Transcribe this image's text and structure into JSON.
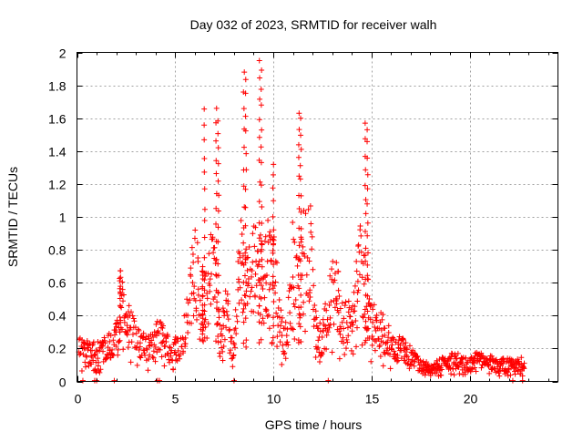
{
  "chart_data": {
    "type": "scatter",
    "title": "Day 032 of 2023, SRMTID for receiver walh",
    "xlabel": "GPS time / hours",
    "ylabel": "SRMTID / TECUs",
    "xlim": [
      0,
      24.5
    ],
    "ylim": [
      0,
      2
    ],
    "x_ticks": [
      0,
      5,
      10,
      15,
      20
    ],
    "x_tick_labels": [
      "0",
      "5",
      "10",
      "15",
      "20"
    ],
    "y_ticks": [
      0,
      0.2,
      0.4,
      0.6,
      0.8,
      1,
      1.2,
      1.4,
      1.6,
      1.8,
      2
    ],
    "y_tick_labels": [
      "0",
      "0.2",
      "0.4",
      "0.6",
      "0.8",
      "1",
      "1.2",
      "1.4",
      "1.6",
      "1.8",
      "2"
    ],
    "grid": true,
    "marker": "+",
    "series": [
      {
        "name": "SRMTID",
        "color": "#ff0000",
        "envelope": [
          [
            0.1,
            0.19
          ],
          [
            0.9,
            0.17
          ],
          [
            1.2,
            0.18
          ],
          [
            1.5,
            0.2
          ],
          [
            1.8,
            0.23
          ],
          [
            2.1,
            0.28
          ],
          [
            2.25,
            0.65
          ],
          [
            2.4,
            0.35
          ],
          [
            2.7,
            0.33
          ],
          [
            3.0,
            0.3
          ],
          [
            3.3,
            0.22
          ],
          [
            3.7,
            0.2
          ],
          [
            4.2,
            0.28
          ],
          [
            4.5,
            0.22
          ],
          [
            4.8,
            0.2
          ],
          [
            5.1,
            0.2
          ],
          [
            5.4,
            0.25
          ],
          [
            5.7,
            0.45
          ],
          [
            6.0,
            0.7
          ],
          [
            6.3,
            0.5
          ],
          [
            6.6,
            0.5
          ],
          [
            6.9,
            0.75
          ],
          [
            7.1,
            0.6
          ],
          [
            7.3,
            0.2
          ],
          [
            7.6,
            0.45
          ],
          [
            8.0,
            0.2
          ],
          [
            8.3,
            0.8
          ],
          [
            8.55,
            0.6
          ],
          [
            8.8,
            0.65
          ],
          [
            9.1,
            0.7
          ],
          [
            9.5,
            0.6
          ],
          [
            9.8,
            0.75
          ],
          [
            10.1,
            0.6
          ],
          [
            10.4,
            0.3
          ],
          [
            10.7,
            0.25
          ],
          [
            11.0,
            0.8
          ],
          [
            11.3,
            0.6
          ],
          [
            11.6,
            0.85
          ],
          [
            11.9,
            0.8
          ],
          [
            12.2,
            0.3
          ],
          [
            12.5,
            0.25
          ],
          [
            12.9,
            0.5
          ],
          [
            13.2,
            0.55
          ],
          [
            13.5,
            0.35
          ],
          [
            13.8,
            0.35
          ],
          [
            14.1,
            0.45
          ],
          [
            14.4,
            0.75
          ],
          [
            14.7,
            0.55
          ],
          [
            15.0,
            0.35
          ],
          [
            15.4,
            0.35
          ],
          [
            15.8,
            0.25
          ],
          [
            16.2,
            0.22
          ],
          [
            16.6,
            0.2
          ],
          [
            17.0,
            0.15
          ],
          [
            17.5,
            0.1
          ],
          [
            18.0,
            0.08
          ],
          [
            18.5,
            0.1
          ],
          [
            19.0,
            0.12
          ],
          [
            19.5,
            0.13
          ],
          [
            20.0,
            0.1
          ],
          [
            20.5,
            0.14
          ],
          [
            21.0,
            0.12
          ],
          [
            21.5,
            0.1
          ],
          [
            22.0,
            0.1
          ],
          [
            22.5,
            0.1
          ],
          [
            22.8,
            0.11
          ]
        ],
        "spikes": [
          [
            2.2,
            0.69
          ],
          [
            6.4,
            0.7
          ],
          [
            6.5,
            1.67
          ],
          [
            7.1,
            1.66
          ],
          [
            7.2,
            1.6
          ],
          [
            8.5,
            1.88
          ],
          [
            8.6,
            1.85
          ],
          [
            9.3,
            1.95
          ],
          [
            9.4,
            1.9
          ],
          [
            10.0,
            1.32
          ],
          [
            11.3,
            1.64
          ],
          [
            11.4,
            1.6
          ],
          [
            14.7,
            1.57
          ],
          [
            14.8,
            1.53
          ]
        ],
        "near_zero": [
          0.3,
          0.9,
          1.0,
          1.9,
          4.1,
          4.2,
          8.0,
          12.8,
          22.2,
          22.7
        ]
      }
    ]
  }
}
